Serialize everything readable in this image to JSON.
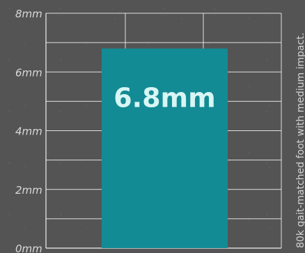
{
  "chart_data": {
    "type": "bar",
    "categories": [
      ""
    ],
    "values": [
      6.8
    ],
    "data_labels": [
      "6.8mm"
    ],
    "ylim": [
      0,
      8
    ],
    "y_ticks": [
      0,
      2,
      4,
      6,
      8
    ],
    "y_tick_labels": [
      "0mm",
      "2mm",
      "4mm",
      "6mm",
      "8mm"
    ],
    "grid": true,
    "annotation": "80k gait-matched foot with medium impact."
  },
  "colors": {
    "background": "#545454",
    "bar": "#138b95",
    "label": "#d8f6f4",
    "grid": "#e9e9e9",
    "text": "#d9d9d9"
  }
}
